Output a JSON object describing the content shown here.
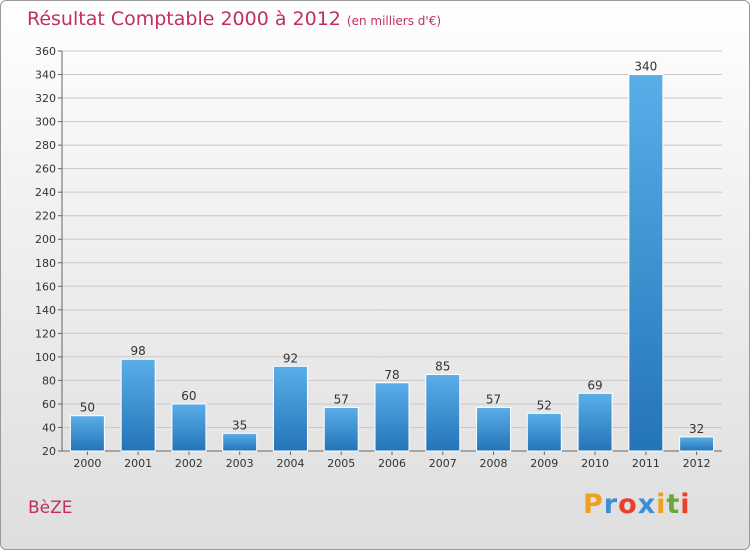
{
  "header": {
    "title": "Résultat Comptable 2000 à 2012",
    "subtitle": "(en milliers d'€)"
  },
  "commune": "BèZE",
  "logo": {
    "letters": [
      "P",
      "r",
      "o",
      "x",
      "i",
      "t",
      "i"
    ],
    "colors": [
      "#f0a020",
      "#3a8fd6",
      "#e8402a",
      "#3a8fd6",
      "#f0a020",
      "#6aa83a",
      "#e8402a"
    ]
  },
  "colors": {
    "title": "#c0305a",
    "bar_top": "#5aaee8",
    "bar_bottom": "#2474b8",
    "grid": "#c8c8c8"
  },
  "chart_data": {
    "type": "bar",
    "title": "Résultat Comptable 2000 à 2012",
    "subtitle": "(en milliers d'€)",
    "xlabel": "",
    "ylabel": "",
    "categories": [
      "2000",
      "2001",
      "2002",
      "2003",
      "2004",
      "2005",
      "2006",
      "2007",
      "2008",
      "2009",
      "2010",
      "2011",
      "2012"
    ],
    "values": [
      50,
      98,
      60,
      35,
      92,
      57,
      78,
      85,
      57,
      52,
      69,
      340,
      32
    ],
    "ylim": [
      20,
      360
    ],
    "ytick_step": 20,
    "grid": true
  }
}
